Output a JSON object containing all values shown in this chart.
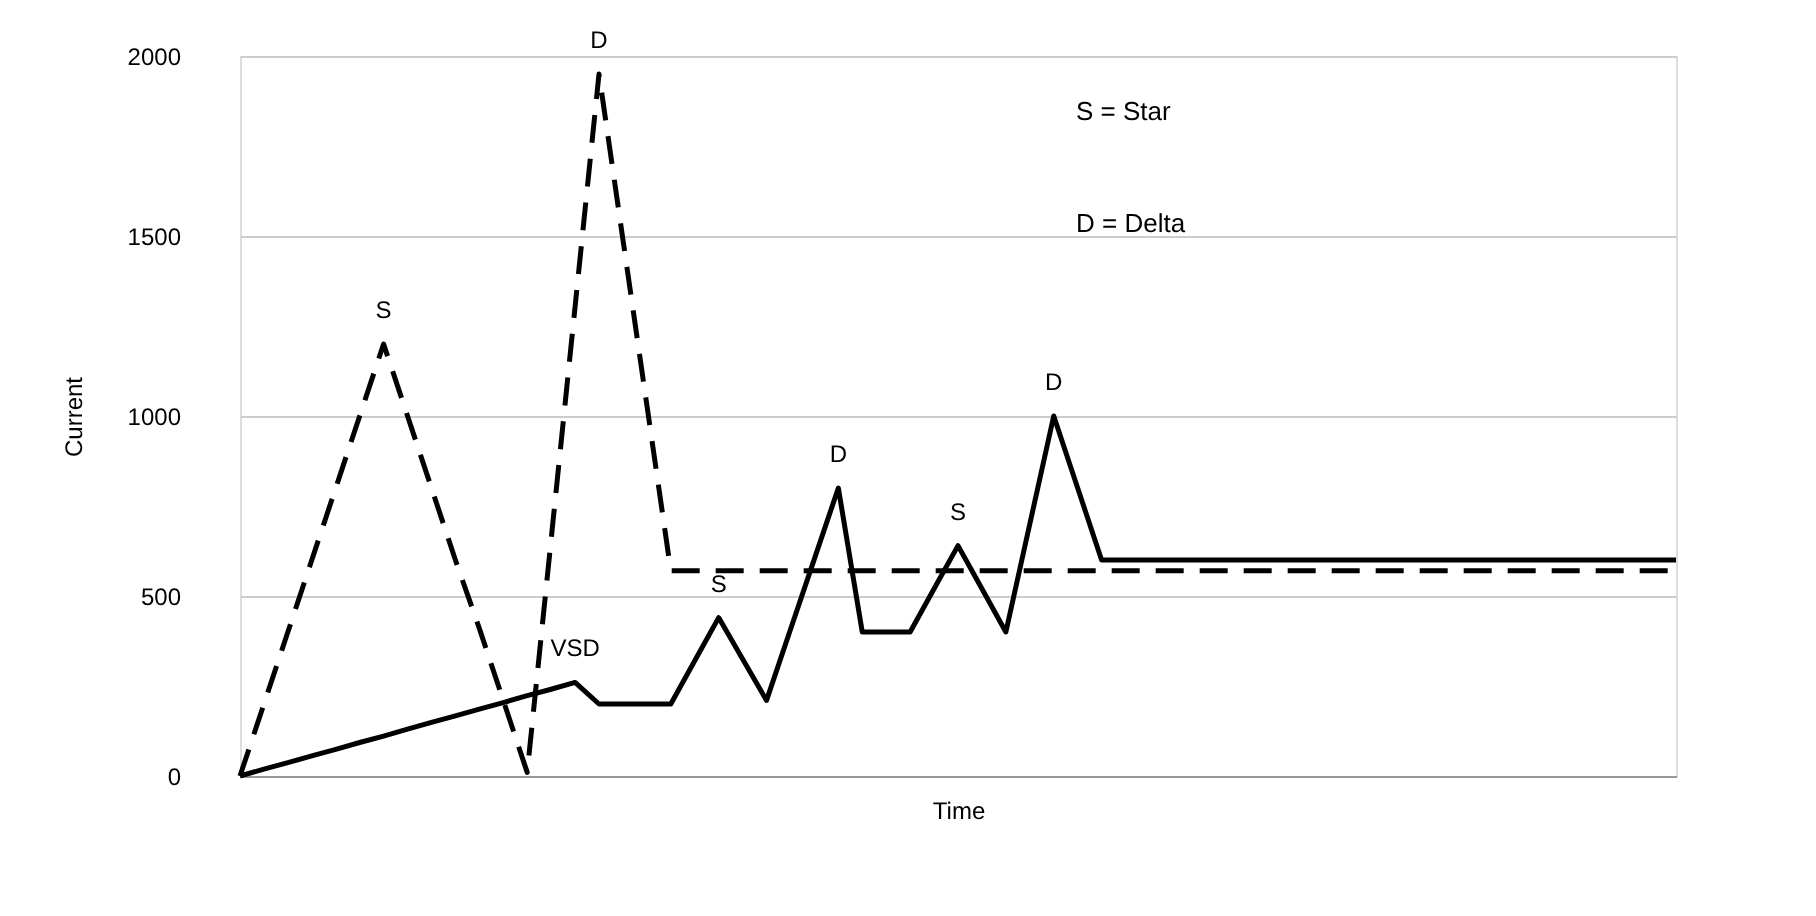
{
  "chart_data": {
    "type": "line",
    "xlabel": "Time",
    "ylabel": "Current",
    "ylim": [
      0,
      2000
    ],
    "yticks": [
      0,
      500,
      1000,
      1500,
      2000
    ],
    "grid": "y",
    "tick_labels": "y",
    "legend": false,
    "marker": "none",
    "categories": [
      null,
      null,
      null,
      null,
      null,
      null,
      null,
      null,
      null,
      null,
      null,
      null,
      null,
      null,
      null,
      null,
      null,
      null,
      null,
      null,
      null,
      null,
      null,
      null,
      null,
      null,
      null,
      null,
      null,
      null,
      null,
      null,
      null,
      null,
      null,
      null,
      null,
      null,
      null,
      null,
      null,
      null,
      null,
      null,
      null,
      null,
      null,
      null,
      null,
      null,
      null,
      null,
      null,
      null,
      null,
      null,
      null,
      null,
      null,
      null,
      null
    ],
    "series": [
      {
        "color": "#000000",
        "line_style": "dashed",
        "values": [
          0,
          200,
          400,
          600,
          800,
          1000,
          1200,
          1000,
          800,
          600,
          410,
          210,
          10,
          657,
          1303,
          1950,
          1490,
          1030,
          570,
          570,
          570,
          570,
          570,
          570,
          570,
          570,
          570,
          570,
          570,
          570,
          570,
          570,
          570,
          570,
          570,
          570,
          570,
          570,
          570,
          570,
          570,
          570,
          570,
          570,
          570,
          570,
          570,
          570,
          570,
          570,
          570,
          570,
          570,
          570,
          570,
          570,
          570,
          570,
          570,
          570,
          570
        ],
        "value_labels": [
          null,
          null,
          null,
          null,
          null,
          null,
          "S",
          null,
          null,
          null,
          null,
          null,
          null,
          null,
          null,
          "D",
          null,
          null,
          null,
          null,
          null,
          null,
          null,
          null,
          null,
          null,
          null,
          null,
          null,
          null,
          null,
          null,
          null,
          null,
          null,
          null,
          null,
          null,
          null,
          null,
          null,
          null,
          null,
          null,
          null,
          null,
          null,
          null,
          null,
          null,
          null,
          null,
          null,
          null,
          null,
          null,
          null,
          null,
          null,
          null,
          null
        ]
      },
      {
        "color": "#000000",
        "line_style": "solid",
        "values": [
          0,
          19,
          37,
          56,
          74,
          93,
          111,
          130,
          149,
          167,
          186,
          204,
          223,
          241,
          260,
          200,
          200,
          200,
          200,
          320,
          440,
          325,
          210,
          407,
          603,
          800,
          400,
          400,
          400,
          520,
          640,
          520,
          400,
          700,
          1000,
          800,
          600,
          600,
          600,
          600,
          600,
          600,
          600,
          600,
          600,
          600,
          600,
          600,
          600,
          600,
          600,
          600,
          600,
          600,
          600,
          600,
          600,
          600,
          600,
          600,
          600
        ],
        "value_labels": [
          null,
          null,
          null,
          null,
          null,
          null,
          null,
          null,
          null,
          null,
          null,
          null,
          null,
          null,
          "VSD",
          null,
          null,
          null,
          null,
          null,
          "S",
          null,
          null,
          null,
          null,
          "D",
          null,
          null,
          null,
          null,
          "S",
          null,
          null,
          null,
          "D",
          null,
          null,
          null,
          null,
          null,
          null,
          null,
          null,
          null,
          null,
          null,
          null,
          null,
          null,
          null,
          null,
          null,
          null,
          null,
          null,
          null,
          null,
          null,
          null,
          null,
          null
        ]
      }
    ],
    "annotations": [
      "S = Star",
      "D = Delta"
    ]
  }
}
